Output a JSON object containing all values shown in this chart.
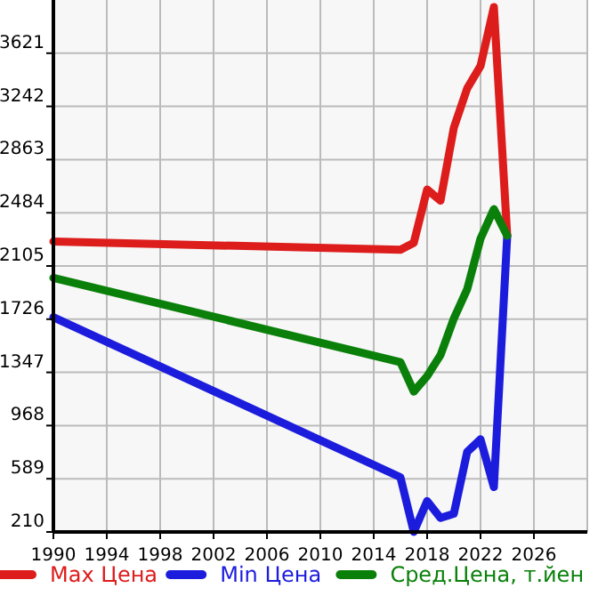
{
  "chart_data": {
    "type": "line",
    "x": [
      1990,
      2016,
      2017,
      2018,
      2019,
      2020,
      2021,
      2022,
      2023,
      2024
    ],
    "series": [
      {
        "name": "Max Цена",
        "color": "#dd1c1c",
        "values": [
          2280,
          2220,
          2270,
          2650,
          2570,
          3090,
          3370,
          3530,
          3950,
          2320
        ]
      },
      {
        "name": "Min Цена",
        "color": "#1c1cdd",
        "values": [
          1740,
          600,
          210,
          430,
          310,
          340,
          780,
          870,
          530,
          2320
        ]
      },
      {
        "name": "Сред.Цена, т.йен",
        "color": "#0a800a",
        "values": [
          2020,
          1420,
          1210,
          1320,
          1470,
          1730,
          1940,
          2300,
          2510,
          2320
        ]
      }
    ],
    "xlim": [
      1990,
      2030
    ],
    "xticks": [
      1990,
      1994,
      1998,
      2002,
      2006,
      2010,
      2014,
      2018,
      2022,
      2026
    ],
    "ylim": [
      210,
      4000
    ],
    "yticks": [
      210,
      589,
      968,
      1347,
      1726,
      2105,
      2484,
      2863,
      3242,
      3621
    ],
    "grid": true,
    "legend": "bottom",
    "marker": "none",
    "line_style": "solid"
  }
}
